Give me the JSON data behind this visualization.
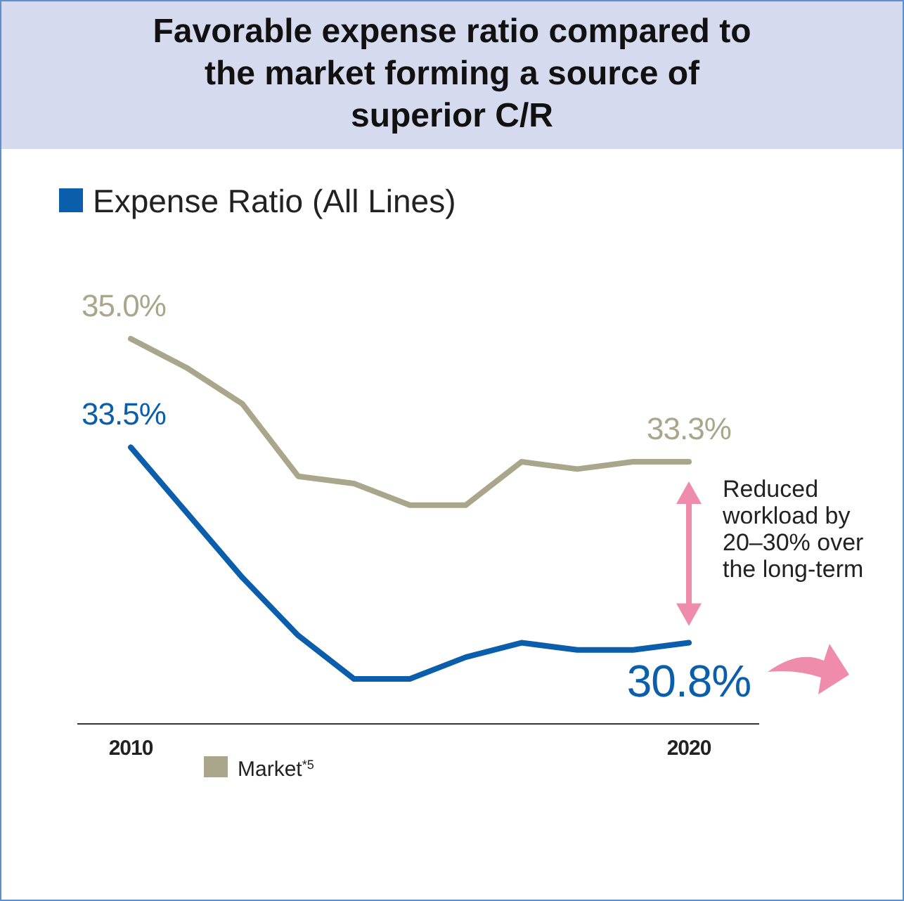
{
  "chart_data": {
    "type": "line",
    "title": "Favorable expense ratio compared to the market forming a source of superior C/R",
    "subtitle": "Expense Ratio (All Lines)",
    "categories": [
      "2010",
      null,
      null,
      null,
      null,
      null,
      null,
      null,
      null,
      null,
      "2020"
    ],
    "tick_labels": "x",
    "series": [
      {
        "color": "#0b5eab",
        "values": [
          33.5,
          32.6,
          31.7,
          30.9,
          30.3,
          30.3,
          30.6,
          30.8,
          30.7,
          30.7,
          30.8
        ],
        "value_labels": [
          "33.5%",
          null,
          null,
          null,
          null,
          null,
          null,
          null,
          null,
          null,
          "30.8%"
        ]
      },
      {
        "name": "Market$^{*5}$",
        "color": "#aaa68c",
        "values": [
          35.0,
          34.6,
          34.1,
          33.1,
          33.0,
          32.7,
          32.7,
          33.3,
          33.2,
          33.3,
          33.3
        ],
        "value_labels": [
          "35.0%",
          null,
          null,
          null,
          null,
          null,
          null,
          null,
          null,
          null,
          "33.3%"
        ]
      }
    ],
    "annotations": [
      "Reduced workload by 20–30% over the long-term"
    ],
    "legend": "bottom left",
    "marker": "none",
    "line_style": "solid"
  }
}
